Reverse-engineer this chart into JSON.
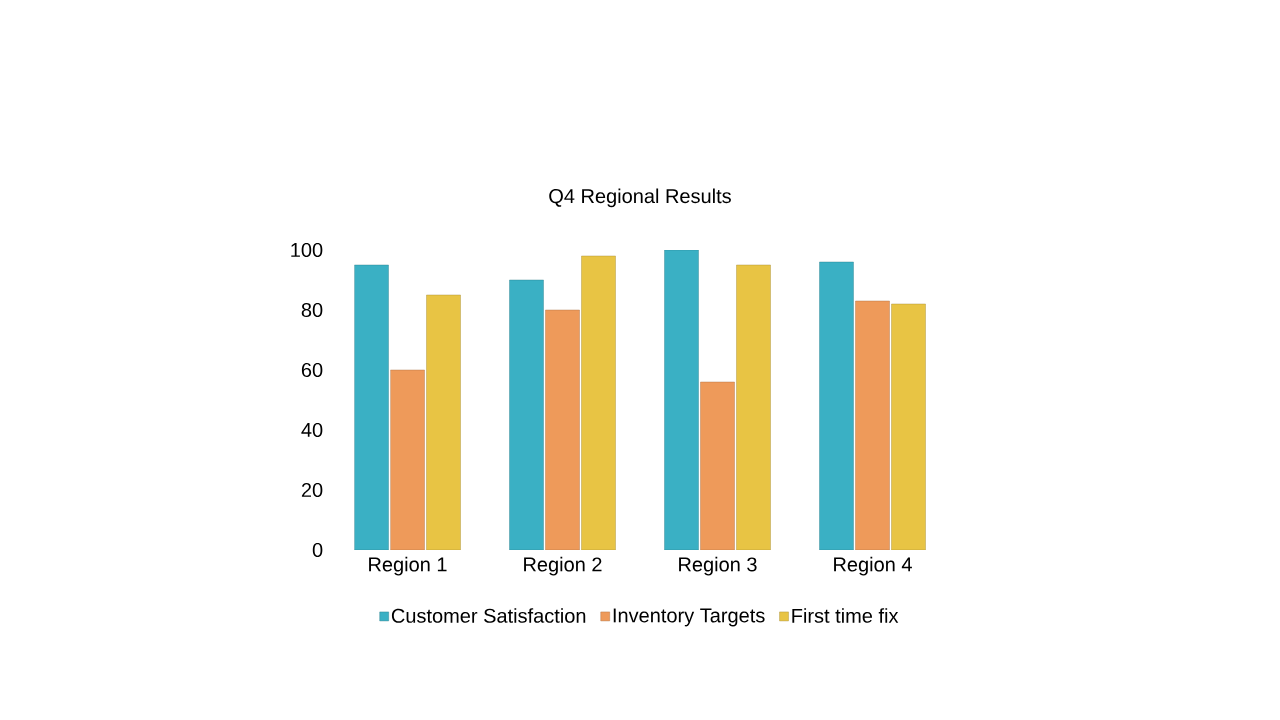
{
  "chart_data": {
    "type": "bar",
    "title": "Q4 Regional Results",
    "categories": [
      "Region 1",
      "Region 2",
      "Region 3",
      "Region 4"
    ],
    "series": [
      {
        "name": "Customer Satisfaction",
        "color": "#3ab0c4",
        "values": [
          95,
          90,
          100,
          96
        ]
      },
      {
        "name": "Inventory Targets",
        "color": "#ee9a5a",
        "values": [
          60,
          80,
          56,
          83
        ]
      },
      {
        "name": "First time fix",
        "color": "#e8c444",
        "values": [
          85,
          98,
          95,
          82
        ]
      }
    ],
    "ylim": [
      0,
      100
    ],
    "yticks": [
      0,
      20,
      40,
      60,
      80,
      100
    ],
    "grid": false,
    "legend": "bottom"
  }
}
